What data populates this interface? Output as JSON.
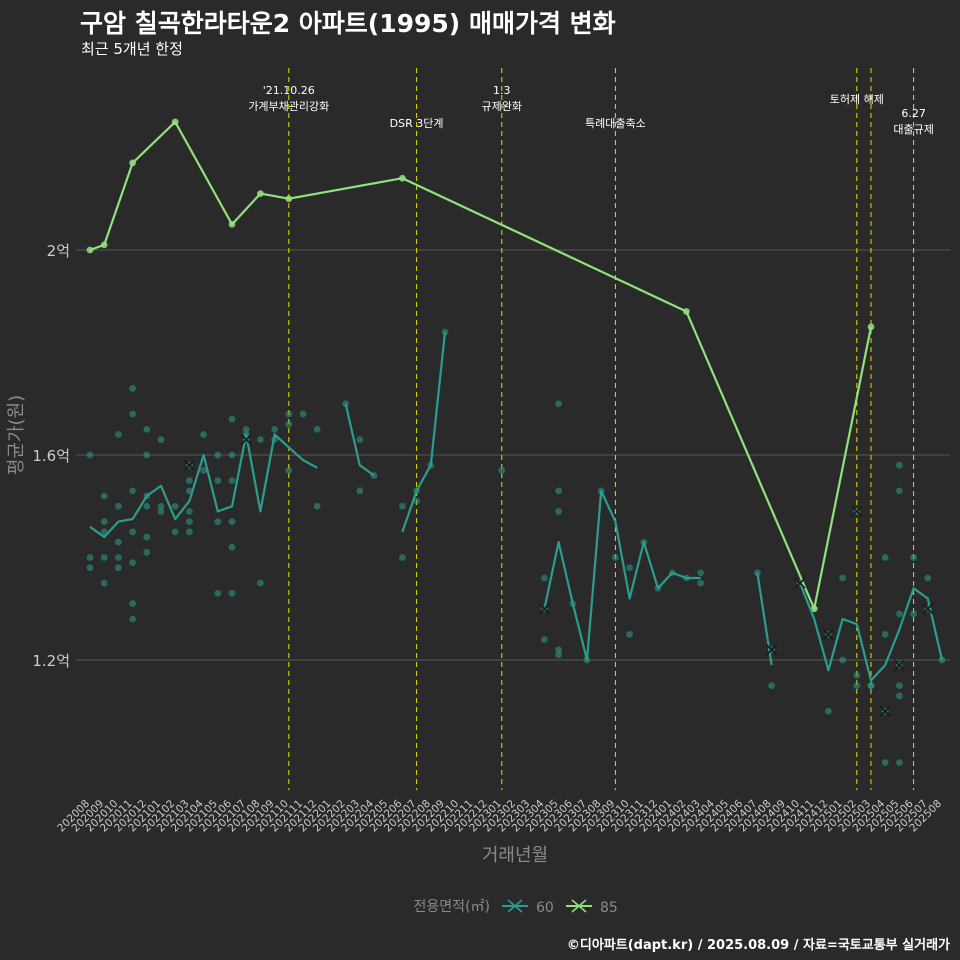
{
  "header": {
    "title": "구암 칠곡한라타운2 아파트(1995) 매매가격 변화",
    "subtitle": "최근 5개년 한정"
  },
  "footer": {
    "caption": "©디아파트(dapt.kr) / 2025.08.09 / 자료=국토교통부 실거래가"
  },
  "colors": {
    "background": "#2a2a2a",
    "series_60": "#2a9d8f",
    "series_85": "#90e27d",
    "event_line": "#e0e000",
    "grid": "#555555",
    "axis_text": "#cccccc"
  },
  "chart_data": {
    "type": "line",
    "xlabel": "거래년월",
    "ylabel": "평균가(원)",
    "ylim_eok": [
      0.925,
      2.1
    ],
    "grid": true,
    "legend_position": "bottom",
    "legend_title": "전용면적(㎡)",
    "y_ticks": [
      {
        "value": 1.2,
        "label": "1.2억"
      },
      {
        "value": 1.6,
        "label": "1.6억"
      },
      {
        "value": 2.0,
        "label": "2억"
      }
    ],
    "x_ticks": [
      "202008",
      "202009",
      "202010",
      "202011",
      "202012",
      "202101",
      "202102",
      "202103",
      "202104",
      "202105",
      "202106",
      "202107",
      "202108",
      "202109",
      "202110",
      "202111",
      "202112",
      "202201",
      "202202",
      "202203",
      "202204",
      "202205",
      "202206",
      "202207",
      "202208",
      "202209",
      "202210",
      "202211",
      "202212",
      "202301",
      "202302",
      "202303",
      "202304",
      "202305",
      "202306",
      "202307",
      "202308",
      "202309",
      "202310",
      "202311",
      "202312",
      "202401",
      "202402",
      "202403",
      "202404",
      "202405",
      "202406",
      "202407",
      "202408",
      "202409",
      "202410",
      "202411",
      "202412",
      "202501",
      "202502",
      "202503",
      "202504",
      "202505",
      "202506",
      "202507",
      "202508"
    ],
    "events": [
      {
        "month": "202110",
        "lines": [
          "'21.10.26",
          "가계부채관리강화"
        ],
        "row": 0
      },
      {
        "month": "202207",
        "lines": [
          "DSR 3단계"
        ],
        "row": 2
      },
      {
        "month": "202301",
        "lines": [
          "1.3",
          "규제완화"
        ],
        "row": 0
      },
      {
        "month": "202309",
        "lines": [
          "특례대출축소"
        ],
        "row": 2
      },
      {
        "month": "202502",
        "lines": [
          "토허제 해제"
        ],
        "row": 1
      },
      {
        "month": "202503",
        "lines": [],
        "row": 1
      },
      {
        "month": "202506",
        "lines": [
          "6.27",
          "대출규제"
        ],
        "row": 3
      }
    ],
    "series": [
      {
        "name": "60",
        "line_segments": [
          [
            [
              "202008",
              1.46
            ],
            [
              "202009",
              1.44
            ],
            [
              "202010",
              1.47
            ],
            [
              "202011",
              1.475
            ],
            [
              "202012",
              1.52
            ],
            [
              "202101",
              1.54
            ],
            [
              "202102",
              1.475
            ],
            [
              "202103",
              1.51
            ],
            [
              "202104",
              1.6
            ],
            [
              "202105",
              1.49
            ],
            [
              "202106",
              1.5
            ],
            [
              "202107",
              1.64
            ],
            [
              "202108",
              1.49
            ],
            [
              "202109",
              1.64
            ],
            [
              "202110",
              1.615
            ],
            [
              "202111",
              1.59
            ],
            [
              "202112",
              1.575
            ]
          ],
          [
            [
              "202202",
              1.7
            ],
            [
              "202203",
              1.58
            ],
            [
              "202204",
              1.56
            ]
          ],
          [
            [
              "202206",
              1.45
            ],
            [
              "202207",
              1.53
            ],
            [
              "202208",
              1.58
            ],
            [
              "202209",
              1.84
            ]
          ],
          [
            [
              "202304",
              1.3
            ],
            [
              "202305",
              1.43
            ],
            [
              "202306",
              1.31
            ],
            [
              "202307",
              1.2
            ],
            [
              "202308",
              1.53
            ],
            [
              "202309",
              1.47
            ],
            [
              "202310",
              1.32
            ],
            [
              "202311",
              1.43
            ],
            [
              "202312",
              1.34
            ],
            [
              "202401",
              1.37
            ],
            [
              "202402",
              1.36
            ],
            [
              "202403",
              1.36
            ]
          ],
          [
            [
              "202407",
              1.37
            ],
            [
              "202408",
              1.19
            ]
          ],
          [
            [
              "202410",
              1.35
            ],
            [
              "202411",
              1.28
            ],
            [
              "202412",
              1.18
            ],
            [
              "202501",
              1.28
            ],
            [
              "202502",
              1.27
            ],
            [
              "202503",
              1.16
            ],
            [
              "202504",
              1.19
            ],
            [
              "202505",
              1.26
            ],
            [
              "202506",
              1.34
            ],
            [
              "202507",
              1.32
            ],
            [
              "202508",
              1.2
            ]
          ]
        ],
        "points": [
          [
            "202008",
            1.6
          ],
          [
            "202008",
            1.4
          ],
          [
            "202008",
            1.38
          ],
          [
            "202009",
            1.52
          ],
          [
            "202009",
            1.47
          ],
          [
            "202009",
            1.45
          ],
          [
            "202009",
            1.4
          ],
          [
            "202009",
            1.35
          ],
          [
            "202010",
            1.64
          ],
          [
            "202010",
            1.5
          ],
          [
            "202010",
            1.43
          ],
          [
            "202010",
            1.4
          ],
          [
            "202010",
            1.38
          ],
          [
            "202011",
            1.73
          ],
          [
            "202011",
            1.68
          ],
          [
            "202011",
            1.53
          ],
          [
            "202011",
            1.45
          ],
          [
            "202011",
            1.39
          ],
          [
            "202011",
            1.31
          ],
          [
            "202011",
            1.28
          ],
          [
            "202012",
            1.65
          ],
          [
            "202012",
            1.6
          ],
          [
            "202012",
            1.52
          ],
          [
            "202012",
            1.5
          ],
          [
            "202012",
            1.44
          ],
          [
            "202012",
            1.41
          ],
          [
            "202101",
            1.63
          ],
          [
            "202101",
            1.5
          ],
          [
            "202101",
            1.49
          ],
          [
            "202102",
            1.5
          ],
          [
            "202102",
            1.45
          ],
          [
            "202103",
            1.58
          ],
          [
            "202103",
            1.55
          ],
          [
            "202103",
            1.53
          ],
          [
            "202103",
            1.49
          ],
          [
            "202103",
            1.47
          ],
          [
            "202103",
            1.45
          ],
          [
            "202104",
            1.64
          ],
          [
            "202104",
            1.57
          ],
          [
            "202105",
            1.6
          ],
          [
            "202105",
            1.55
          ],
          [
            "202105",
            1.47
          ],
          [
            "202105",
            1.33
          ],
          [
            "202106",
            1.67
          ],
          [
            "202106",
            1.6
          ],
          [
            "202106",
            1.55
          ],
          [
            "202106",
            1.47
          ],
          [
            "202106",
            1.42
          ],
          [
            "202106",
            1.33
          ],
          [
            "202107",
            1.65
          ],
          [
            "202107",
            1.64
          ],
          [
            "202107",
            1.63
          ],
          [
            "202108",
            1.63
          ],
          [
            "202108",
            1.35
          ],
          [
            "202109",
            1.65
          ],
          [
            "202109",
            1.63
          ],
          [
            "202110",
            1.68
          ],
          [
            "202110",
            1.66
          ],
          [
            "202110",
            1.57
          ],
          [
            "202111",
            1.68
          ],
          [
            "202112",
            1.65
          ],
          [
            "202112",
            1.5
          ],
          [
            "202202",
            1.7
          ],
          [
            "202203",
            1.63
          ],
          [
            "202203",
            1.53
          ],
          [
            "202204",
            1.56
          ],
          [
            "202206",
            1.5
          ],
          [
            "202206",
            1.4
          ],
          [
            "202207",
            1.53
          ],
          [
            "202207",
            1.51
          ],
          [
            "202208",
            1.58
          ],
          [
            "202209",
            1.84
          ],
          [
            "202301",
            1.57
          ],
          [
            "202304",
            1.36
          ],
          [
            "202304",
            1.3
          ],
          [
            "202304",
            1.24
          ],
          [
            "202305",
            1.7
          ],
          [
            "202305",
            1.53
          ],
          [
            "202305",
            1.49
          ],
          [
            "202305",
            1.22
          ],
          [
            "202305",
            1.21
          ],
          [
            "202306",
            1.31
          ],
          [
            "202307",
            1.2
          ],
          [
            "202308",
            1.53
          ],
          [
            "202309",
            1.4
          ],
          [
            "202310",
            1.38
          ],
          [
            "202310",
            1.25
          ],
          [
            "202311",
            1.43
          ],
          [
            "202312",
            1.34
          ],
          [
            "202401",
            1.37
          ],
          [
            "202402",
            1.36
          ],
          [
            "202403",
            1.37
          ],
          [
            "202403",
            1.35
          ],
          [
            "202407",
            1.37
          ],
          [
            "202408",
            1.22
          ],
          [
            "202408",
            1.15
          ],
          [
            "202410",
            1.35
          ],
          [
            "202411",
            1.3
          ],
          [
            "202412",
            1.25
          ],
          [
            "202412",
            1.1
          ],
          [
            "202501",
            1.36
          ],
          [
            "202501",
            1.2
          ],
          [
            "202502",
            1.49
          ],
          [
            "202502",
            1.17
          ],
          [
            "202502",
            1.15
          ],
          [
            "202503",
            1.15
          ],
          [
            "202503",
            1.15
          ],
          [
            "202504",
            1.4
          ],
          [
            "202504",
            1.25
          ],
          [
            "202504",
            1.1
          ],
          [
            "202504",
            1.0
          ],
          [
            "202505",
            1.58
          ],
          [
            "202505",
            1.53
          ],
          [
            "202505",
            1.29
          ],
          [
            "202505",
            1.19
          ],
          [
            "202505",
            1.15
          ],
          [
            "202505",
            1.13
          ],
          [
            "202505",
            1.0
          ],
          [
            "202506",
            1.4
          ],
          [
            "202506",
            1.29
          ],
          [
            "202507",
            1.36
          ],
          [
            "202507",
            1.3
          ],
          [
            "202508",
            1.2
          ]
        ],
        "x_markers": [
          [
            "202103",
            1.58
          ],
          [
            "202107",
            1.63
          ],
          [
            "202304",
            1.3
          ],
          [
            "202408",
            1.22
          ],
          [
            "202410",
            1.35
          ],
          [
            "202412",
            1.25
          ],
          [
            "202502",
            1.49
          ],
          [
            "202504",
            1.1
          ],
          [
            "202505",
            1.19
          ],
          [
            "202507",
            1.3
          ]
        ]
      },
      {
        "name": "85",
        "line_segments": [
          [
            [
              "202008",
              2.0
            ],
            [
              "202009",
              2.01
            ],
            [
              "202011",
              2.17
            ],
            [
              "202102",
              2.25
            ],
            [
              "202106",
              2.05
            ],
            [
              "202108",
              2.11
            ],
            [
              "202110",
              2.1
            ],
            [
              "202206",
              2.14
            ],
            [
              "202402",
              1.88
            ],
            [
              "202411",
              1.3
            ],
            [
              "202503",
              1.85
            ]
          ]
        ],
        "points": [
          [
            "202008",
            2.0
          ],
          [
            "202009",
            2.01
          ],
          [
            "202011",
            2.17
          ],
          [
            "202102",
            2.25
          ],
          [
            "202106",
            2.05
          ],
          [
            "202108",
            2.11
          ],
          [
            "202110",
            2.1
          ],
          [
            "202206",
            2.14
          ],
          [
            "202402",
            1.88
          ],
          [
            "202411",
            1.3
          ],
          [
            "202503",
            1.85
          ]
        ],
        "x_markers": []
      }
    ]
  }
}
